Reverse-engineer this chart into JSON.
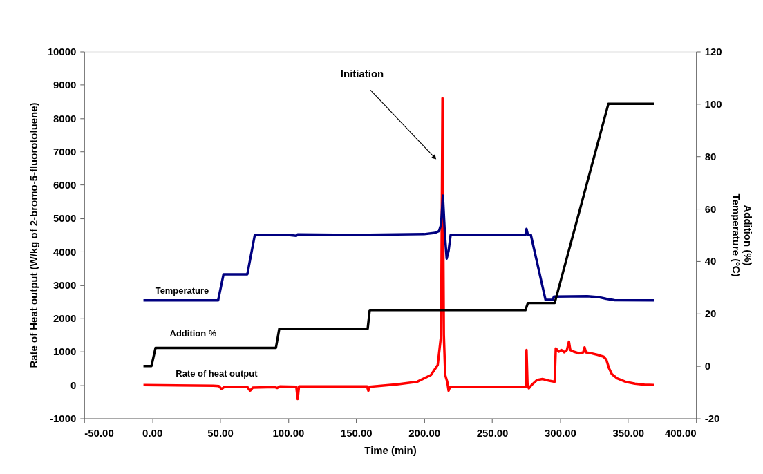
{
  "chart_data": {
    "type": "line",
    "xlabel": "Time (min)",
    "ylabel": "Rate of Heat output (W/kg of 2-bromo-5-fluorotoluene)",
    "y2label": "Addition (%)\nTemperature (ºC)",
    "xlim": [
      -50,
      400
    ],
    "xticks": [
      {
        "value": -50,
        "label": "-50.00"
      },
      {
        "value": 0,
        "label": "0.00"
      },
      {
        "value": 50,
        "label": "50.00"
      },
      {
        "value": 100,
        "label": "100.00"
      },
      {
        "value": 150,
        "label": "150.00"
      },
      {
        "value": 200,
        "label": "200.00"
      },
      {
        "value": 250,
        "label": "250.00"
      },
      {
        "value": 300,
        "label": "300.00"
      },
      {
        "value": 350,
        "label": "350.00"
      },
      {
        "value": 400,
        "label": "400.00"
      }
    ],
    "ylim": [
      -1000,
      10000
    ],
    "yticks": [
      -1000,
      0,
      1000,
      2000,
      3000,
      4000,
      5000,
      6000,
      7000,
      8000,
      9000,
      10000
    ],
    "y2lim": [
      -20,
      120
    ],
    "y2ticks": [
      -20,
      0,
      20,
      40,
      60,
      80,
      100,
      120
    ],
    "grid": false,
    "marker": "none",
    "line_style": "solid",
    "annotations": [
      "Initiation"
    ],
    "series": [
      {
        "name": "Rate of heat output",
        "color": "#ff0000",
        "x": [
          -6.4,
          45,
          49,
          51,
          53,
          70,
          72,
          74,
          90,
          92,
          94,
          106,
          107,
          108,
          158,
          159,
          160,
          180,
          195,
          205,
          210,
          212.5,
          213.5,
          214.5,
          215.5,
          217,
          218,
          219,
          240,
          274.8,
          275.3,
          276,
          277,
          279,
          283,
          287,
          292,
          296,
          296.8,
          299,
          301,
          303,
          305,
          306.5,
          307.5,
          310,
          314,
          317,
          318,
          319,
          323,
          328,
          332,
          334,
          336,
          338,
          342,
          348,
          355,
          362,
          369
        ],
        "values": [
          0,
          -20,
          -30,
          -120,
          -60,
          -60,
          -170,
          -80,
          -60,
          -90,
          -40,
          -50,
          -420,
          -40,
          -40,
          -170,
          -50,
          20,
          100,
          300,
          600,
          1500,
          8600,
          1500,
          300,
          100,
          -170,
          -60,
          -50,
          -50,
          1050,
          50,
          -100,
          0,
          150,
          180,
          130,
          100,
          1100,
          1000,
          1050,
          980,
          1050,
          1300,
          1050,
          1000,
          950,
          980,
          1130,
          980,
          950,
          900,
          850,
          760,
          500,
          330,
          200,
          100,
          40,
          10,
          0
        ]
      },
      {
        "name": "Temperature",
        "color": "#000080",
        "axis": "y2",
        "x": [
          -6.4,
          48.5,
          52.5,
          70,
          75.5,
          100,
          106,
          107,
          150,
          200,
          208,
          211,
          212.5,
          213.8,
          215.3,
          216.6,
          218,
          219.5,
          274.5,
          275.3,
          276.3,
          278.5,
          289.3,
          294.5,
          295.5,
          320,
          328,
          334,
          340,
          369
        ],
        "values": [
          25,
          25,
          35,
          35,
          50,
          50,
          49.7,
          50.2,
          50,
          50.3,
          50.8,
          51.5,
          54,
          65,
          50,
          41,
          44,
          50,
          50,
          52.3,
          50,
          50,
          25.2,
          25.3,
          26.5,
          26.6,
          26.3,
          25.6,
          25.1,
          25
        ]
      },
      {
        "name": "Addition %",
        "color": "#000000",
        "axis": "y2",
        "x": [
          -6.4,
          -0.5,
          2.5,
          91,
          93.5,
          158.5,
          160,
          274.5,
          276.3,
          296,
          335.5,
          369
        ],
        "values": [
          0,
          0,
          6.9,
          6.9,
          14.2,
          14.2,
          21.3,
          21.3,
          24,
          24,
          100,
          100
        ]
      }
    ]
  }
}
